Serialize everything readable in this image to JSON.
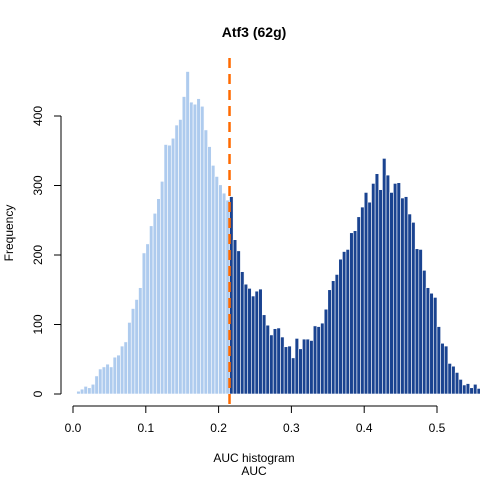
{
  "chart_data": {
    "type": "bar",
    "title": "Atf3 (62g)",
    "xlabel": "AUC histogram",
    "xlabel2": "AUC",
    "ylabel": "Frequency",
    "xlim": [
      0.0,
      0.5
    ],
    "ylim": [
      0,
      400
    ],
    "x_ticks": [
      "0.0",
      "0.1",
      "0.2",
      "0.3",
      "0.4",
      "0.5"
    ],
    "y_ticks": [
      "0",
      "100",
      "200",
      "300",
      "400"
    ],
    "bin_width": 0.005,
    "bins_start": 0.0,
    "threshold": 0.215,
    "grid": false,
    "colors": {
      "below_threshold": "#aecbee",
      "above_threshold": "#1a4390",
      "threshold_line": "#ff6a00",
      "bar_border": "#ffffff"
    },
    "counts": [
      0,
      4,
      7,
      11,
      9,
      14,
      26,
      36,
      39,
      43,
      39,
      53,
      56,
      69,
      75,
      103,
      123,
      136,
      153,
      203,
      216,
      242,
      260,
      281,
      306,
      359,
      358,
      368,
      387,
      395,
      428,
      464,
      420,
      417,
      425,
      414,
      380,
      356,
      329,
      313,
      301,
      289,
      279,
      284,
      222,
      206,
      176,
      158,
      152,
      141,
      148,
      151,
      114,
      99,
      85,
      94,
      95,
      82,
      68,
      69,
      52,
      80,
      65,
      79,
      79,
      77,
      98,
      97,
      102,
      122,
      150,
      163,
      172,
      194,
      205,
      208,
      232,
      235,
      255,
      269,
      290,
      276,
      303,
      317,
      294,
      339,
      315,
      290,
      303,
      304,
      282,
      284,
      259,
      247,
      209,
      208,
      178,
      153,
      145,
      139,
      97,
      73,
      69,
      44,
      40,
      31,
      21,
      13,
      15,
      9,
      14,
      8,
      8,
      6,
      5,
      2,
      3,
      2,
      3,
      3,
      2,
      1,
      1
    ]
  }
}
